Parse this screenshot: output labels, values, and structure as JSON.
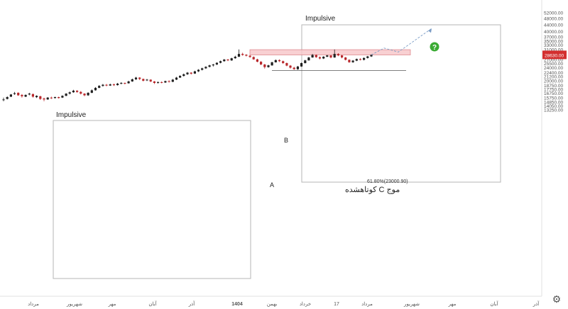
{
  "chart_data": {
    "type": "candlestick",
    "y_ticks": [
      "52000.00",
      "48000.00",
      "44000.00",
      "40000.00",
      "37000.00",
      "35000.00",
      "33000.00",
      "31000.00",
      "28630.00",
      "27000.00",
      "25500.00",
      "24000.00",
      "22400.00",
      "21200.00",
      "20000.00",
      "18750.00",
      "17750.00",
      "16750.00",
      "15750.00",
      "14850.00",
      "14050.00",
      "13250.00"
    ],
    "y_values": [
      52000,
      48000,
      44000,
      40000,
      37000,
      35000,
      33000,
      31000,
      28630,
      27000,
      25500,
      24000,
      22400,
      21200,
      20000,
      18750,
      17750,
      16750,
      15750,
      14850,
      14050,
      13250
    ],
    "ylim": [
      13250,
      52000
    ],
    "y_scale": "log",
    "x_ticks": [
      "مرداد",
      "شهریور",
      "مهر",
      "آبان",
      "آذر",
      "1404",
      "بهمن",
      "خرداد",
      "17",
      "مرداد",
      "شهریور",
      "مهر",
      "آبان",
      "آذر"
    ],
    "current_price": "28630.00",
    "current_price_value": 28630,
    "grid": false,
    "annotations": {
      "impulsive_left": "Impulsive",
      "impulsive_right": "Impulsive",
      "label_a": "A",
      "label_b": "B",
      "fib_label": "61.80%(23000.90)",
      "fib_value": 23000.9,
      "wave_c_label": "موج C کوتاهشده",
      "question_mark": "?"
    },
    "resistance_zone": [
      28600,
      30800
    ],
    "series": [
      {
        "values": [
          [
            15300,
            15300,
            15700,
            14900
          ],
          [
            15400,
            15800,
            16000,
            15300
          ],
          [
            15900,
            16400,
            16500,
            15800
          ],
          [
            16500,
            16700,
            17000,
            16300
          ],
          [
            16800,
            16200,
            16900,
            16100
          ],
          [
            16300,
            16000,
            16500,
            15700
          ],
          [
            15900,
            16300,
            16400,
            15800
          ],
          [
            16400,
            16600,
            16800,
            16200
          ],
          [
            16500,
            15900,
            16600,
            15700
          ],
          [
            15800,
            16100,
            16200,
            15600
          ],
          [
            16000,
            15400,
            16100,
            15200
          ],
          [
            15500,
            15300,
            15700,
            14900
          ],
          [
            15300,
            15700,
            15800,
            15200
          ],
          [
            15700,
            15600,
            15900,
            15400
          ],
          [
            15600,
            15800,
            15900,
            15500
          ],
          [
            15800,
            15600,
            15900,
            15500
          ],
          [
            15700,
            16100,
            16200,
            15600
          ],
          [
            16100,
            16600,
            16700,
            16000
          ],
          [
            16600,
            16900,
            17100,
            16400
          ],
          [
            16900,
            17300,
            17500,
            16800
          ],
          [
            17300,
            17000,
            17400,
            16800
          ],
          [
            17000,
            16600,
            17200,
            16400
          ],
          [
            16600,
            16200,
            16700,
            16000
          ],
          [
            16200,
            16800,
            16900,
            16100
          ],
          [
            16800,
            17400,
            17600,
            16700
          ],
          [
            17400,
            18000,
            18200,
            17300
          ],
          [
            18000,
            18500,
            18700,
            17900
          ],
          [
            18500,
            18800,
            19000,
            18300
          ],
          [
            18800,
            18600,
            19000,
            18400
          ],
          [
            18600,
            18900,
            19100,
            18500
          ],
          [
            18900,
            18700,
            19100,
            18500
          ],
          [
            18700,
            19100,
            19300,
            18600
          ],
          [
            19100,
            19300,
            19500,
            18900
          ],
          [
            19300,
            19100,
            19400,
            18900
          ],
          [
            19200,
            19700,
            19900,
            19100
          ],
          [
            19700,
            20300,
            20500,
            19600
          ],
          [
            20300,
            20800,
            21000,
            20100
          ],
          [
            20800,
            20400,
            20900,
            20100
          ],
          [
            20400,
            19900,
            20500,
            19700
          ],
          [
            20000,
            20200,
            20400,
            19800
          ],
          [
            20200,
            19700,
            20300,
            19500
          ],
          [
            19700,
            19300,
            19800,
            19000
          ],
          [
            19300,
            19500,
            19700,
            19100
          ],
          [
            19500,
            19400,
            19700,
            19200
          ],
          [
            19400,
            19800,
            19900,
            19300
          ],
          [
            19800,
            19600,
            20000,
            19400
          ],
          [
            19600,
            20200,
            20400,
            19500
          ],
          [
            20200,
            20800,
            21000,
            20100
          ],
          [
            20800,
            21300,
            21500,
            20700
          ],
          [
            21300,
            21800,
            22000,
            21100
          ],
          [
            21800,
            22300,
            22500,
            21600
          ],
          [
            22300,
            22000,
            22400,
            21700
          ],
          [
            22000,
            22700,
            22900,
            21900
          ],
          [
            22700,
            23200,
            23400,
            22500
          ],
          [
            23200,
            23700,
            23900,
            23000
          ],
          [
            23700,
            24200,
            24400,
            23500
          ],
          [
            24200,
            24700,
            24900,
            24000
          ],
          [
            24700,
            25000,
            25200,
            24300
          ],
          [
            25000,
            25600,
            25800,
            24800
          ],
          [
            25600,
            26200,
            26400,
            25400
          ],
          [
            26200,
            26800,
            27000,
            26000
          ],
          [
            26800,
            26500,
            27000,
            26200
          ],
          [
            26500,
            27300,
            27500,
            26300
          ],
          [
            27300,
            27900,
            28300,
            27100
          ],
          [
            27900,
            29000,
            30900,
            27800
          ],
          [
            29000,
            28600,
            29500,
            28300
          ],
          [
            28700,
            28300,
            28900,
            28000
          ],
          [
            28300,
            27800,
            28500,
            27500
          ],
          [
            27800,
            26900,
            28000,
            26700
          ],
          [
            26900,
            26000,
            27100,
            25800
          ],
          [
            26000,
            25000,
            26200,
            24800
          ],
          [
            25000,
            24100,
            25200,
            23600
          ],
          [
            24100,
            24700,
            24900,
            23900
          ],
          [
            24700,
            25800,
            26000,
            24600
          ],
          [
            25800,
            26600,
            26800,
            25700
          ],
          [
            26600,
            26200,
            26900,
            25900
          ],
          [
            26200,
            25500,
            26400,
            25200
          ],
          [
            25500,
            24600,
            25700,
            24400
          ],
          [
            24600,
            23900,
            24800,
            23600
          ],
          [
            23900,
            23400,
            24200,
            23200
          ],
          [
            23400,
            24300,
            24500,
            23200
          ],
          [
            24300,
            25500,
            25700,
            24200
          ],
          [
            25500,
            26500,
            26700,
            25400
          ],
          [
            26500,
            27600,
            27800,
            26400
          ],
          [
            27600,
            28600,
            29000,
            27500
          ],
          [
            28600,
            27700,
            28800,
            27500
          ],
          [
            27700,
            27200,
            28000,
            26900
          ],
          [
            27200,
            27900,
            28100,
            27000
          ],
          [
            27900,
            28400,
            28600,
            27700
          ],
          [
            28400,
            27600,
            28500,
            27300
          ],
          [
            27600,
            29000,
            30900,
            27500
          ],
          [
            29000,
            28400,
            29300,
            28100
          ],
          [
            28400,
            27600,
            28600,
            27300
          ],
          [
            27600,
            26700,
            27800,
            26500
          ],
          [
            26700,
            25800,
            26900,
            25600
          ],
          [
            25800,
            26400,
            26600,
            25600
          ],
          [
            26400,
            27000,
            27200,
            26200
          ],
          [
            27000,
            26700,
            27300,
            26500
          ],
          [
            26700,
            27400,
            27600,
            26500
          ],
          [
            27400,
            28000,
            28200,
            27200
          ],
          [
            28000,
            28600,
            28800,
            27800
          ]
        ]
      }
    ],
    "projection": [
      28600,
      31500,
      29800,
      41500
    ],
    "colors": {
      "up": "#1f1f1f",
      "down": "#b8272b",
      "zone": "#f7c8cb",
      "zone_border": "#d9787e",
      "price_badge": "#d32f2f",
      "question": "#3bab34",
      "projection": "#7a9cc6"
    }
  }
}
